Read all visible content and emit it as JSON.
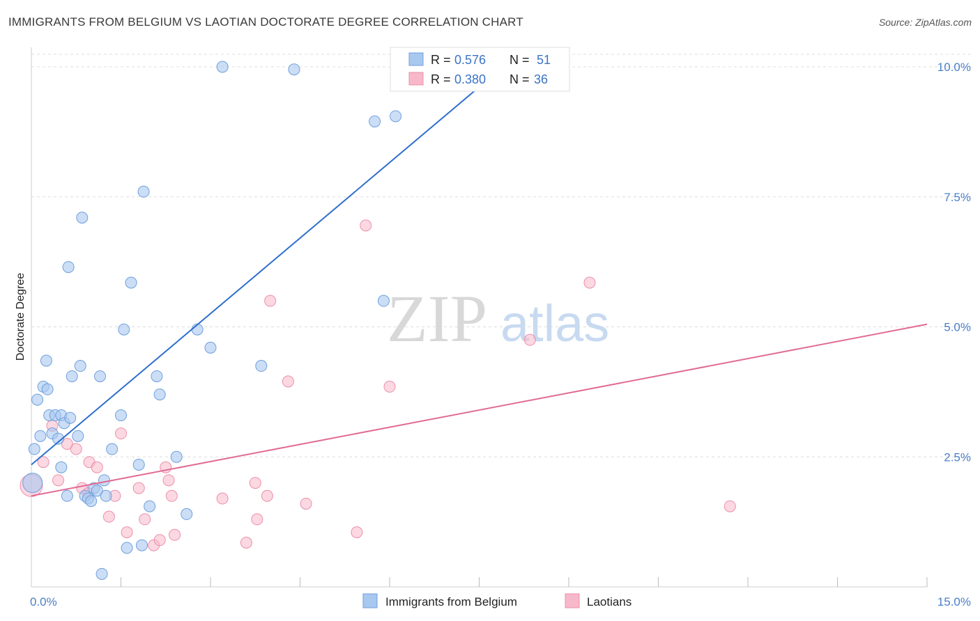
{
  "title": "IMMIGRANTS FROM BELGIUM VS LAOTIAN DOCTORATE DEGREE CORRELATION CHART",
  "source": "Source: ZipAtlas.com",
  "watermark": {
    "zip": "ZIP",
    "atlas": "atlas"
  },
  "legend": {
    "r_label": "R =",
    "n_label": "N =",
    "rows": [
      {
        "r": "0.576",
        "n": "51"
      },
      {
        "r": "0.380",
        "n": "36"
      }
    ]
  },
  "colors": {
    "blue_fill": "#a9c8f0",
    "blue_stroke": "#6f9fdc",
    "blue_line": "#2e6fcc",
    "pink_fill": "#f7b8cb",
    "pink_stroke": "#ec8faa",
    "pink_line": "#e16b96",
    "tick_text": "#4a7fc8",
    "grid": "#dddddd"
  },
  "chart_data": {
    "type": "scatter",
    "title": "IMMIGRANTS FROM BELGIUM VS LAOTIAN DOCTORATE DEGREE CORRELATION CHART",
    "xlabel": "",
    "ylabel": "Doctorate Degree",
    "xlim": [
      0,
      15
    ],
    "ylim": [
      0,
      10
    ],
    "x_ticks": [
      {
        "v": 0,
        "label": "0.0%"
      },
      {
        "v": 15,
        "label": "15.0%"
      }
    ],
    "x_minor_ticks": [
      1.5,
      3.0,
      4.5,
      6.0,
      7.5,
      9.0,
      10.5,
      12.0,
      13.5,
      15.0
    ],
    "y_ticks": [
      {
        "v": 2.5,
        "label": "2.5%"
      },
      {
        "v": 5.0,
        "label": "5.0%"
      },
      {
        "v": 7.5,
        "label": "7.5%"
      },
      {
        "v": 10.0,
        "label": "10.0%"
      }
    ],
    "grid": true,
    "legend_position": "top-center",
    "series": [
      {
        "name": "Immigrants from Belgium",
        "color": "#a9c8f0",
        "trend": {
          "x": [
            0,
            7.9
          ],
          "y": [
            2.35,
            10.0
          ]
        },
        "points": [
          [
            0.05,
            2.65
          ],
          [
            0.1,
            3.6
          ],
          [
            0.15,
            2.9
          ],
          [
            0.2,
            3.85
          ],
          [
            0.25,
            4.35
          ],
          [
            0.27,
            3.8
          ],
          [
            0.3,
            3.3
          ],
          [
            0.35,
            2.95
          ],
          [
            0.4,
            3.3
          ],
          [
            0.45,
            2.85
          ],
          [
            0.5,
            3.3
          ],
          [
            0.5,
            2.3
          ],
          [
            0.55,
            3.15
          ],
          [
            0.6,
            1.75
          ],
          [
            0.62,
            6.15
          ],
          [
            0.65,
            3.25
          ],
          [
            0.68,
            4.05
          ],
          [
            0.78,
            2.9
          ],
          [
            0.82,
            4.25
          ],
          [
            0.85,
            7.1
          ],
          [
            0.9,
            1.75
          ],
          [
            0.95,
            1.7
          ],
          [
            1.0,
            1.65
          ],
          [
            1.05,
            1.9
          ],
          [
            1.1,
            1.85
          ],
          [
            1.15,
            4.05
          ],
          [
            1.18,
            0.25
          ],
          [
            1.22,
            2.05
          ],
          [
            1.25,
            1.75
          ],
          [
            1.35,
            2.65
          ],
          [
            1.5,
            3.3
          ],
          [
            1.55,
            4.95
          ],
          [
            1.6,
            0.75
          ],
          [
            1.67,
            5.85
          ],
          [
            1.8,
            2.35
          ],
          [
            1.85,
            0.8
          ],
          [
            1.88,
            7.6
          ],
          [
            1.98,
            1.55
          ],
          [
            2.1,
            4.05
          ],
          [
            2.15,
            3.7
          ],
          [
            2.43,
            2.5
          ],
          [
            2.6,
            1.4
          ],
          [
            2.78,
            4.95
          ],
          [
            3.0,
            4.6
          ],
          [
            3.2,
            10.0
          ],
          [
            3.85,
            4.25
          ],
          [
            4.4,
            9.95
          ],
          [
            5.75,
            8.95
          ],
          [
            5.9,
            5.5
          ],
          [
            6.1,
            9.05
          ],
          [
            0.02,
            2.0
          ]
        ]
      },
      {
        "name": "Laotians",
        "color": "#f7b8cb",
        "trend": {
          "x": [
            0,
            15
          ],
          "y": [
            1.75,
            5.05
          ]
        },
        "points": [
          [
            0.0,
            1.95
          ],
          [
            0.2,
            2.4
          ],
          [
            0.45,
            2.05
          ],
          [
            0.35,
            3.1
          ],
          [
            0.6,
            2.75
          ],
          [
            0.75,
            2.65
          ],
          [
            0.85,
            1.9
          ],
          [
            0.95,
            1.8
          ],
          [
            0.97,
            2.4
          ],
          [
            1.1,
            2.3
          ],
          [
            1.3,
            1.35
          ],
          [
            1.4,
            1.75
          ],
          [
            1.5,
            2.95
          ],
          [
            1.6,
            1.05
          ],
          [
            1.8,
            1.9
          ],
          [
            1.9,
            1.3
          ],
          [
            2.05,
            0.8
          ],
          [
            2.15,
            0.9
          ],
          [
            2.25,
            2.3
          ],
          [
            2.3,
            2.05
          ],
          [
            2.35,
            1.75
          ],
          [
            2.4,
            1.0
          ],
          [
            3.2,
            1.7
          ],
          [
            3.6,
            0.85
          ],
          [
            3.75,
            2.0
          ],
          [
            3.78,
            1.3
          ],
          [
            3.95,
            1.75
          ],
          [
            4.0,
            5.5
          ],
          [
            4.3,
            3.95
          ],
          [
            4.6,
            1.6
          ],
          [
            5.45,
            1.05
          ],
          [
            5.6,
            6.95
          ],
          [
            6.0,
            3.85
          ],
          [
            8.35,
            4.75
          ],
          [
            9.35,
            5.85
          ],
          [
            11.7,
            1.55
          ]
        ]
      }
    ]
  },
  "bottom_legend": [
    {
      "label": "Immigrants from Belgium"
    },
    {
      "label": "Laotians"
    }
  ]
}
